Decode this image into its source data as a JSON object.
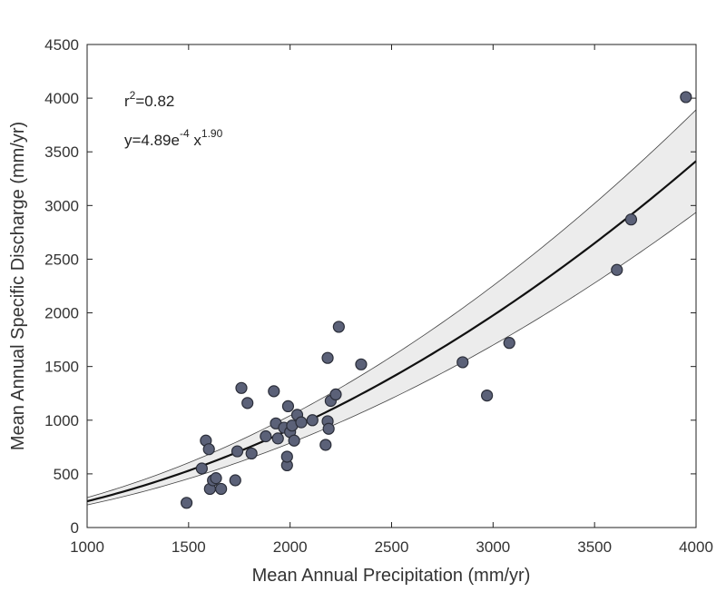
{
  "chart_data": {
    "type": "scatter",
    "xlabel": "Mean Annual Precipitation (mm/yr)",
    "ylabel": "Mean Annual Specific Discharge (mm/yr)",
    "xlim": [
      1000,
      4000
    ],
    "ylim": [
      0,
      4500
    ],
    "xticks": [
      "1000",
      "1500",
      "2000",
      "2500",
      "3000",
      "3500",
      "4000"
    ],
    "yticks": [
      "0",
      "500",
      "1000",
      "1500",
      "2000",
      "2500",
      "3000",
      "3500",
      "4000",
      "4500"
    ],
    "grid": false,
    "annotations": {
      "r2_prefix": "r",
      "r2_exp": "2",
      "r2_value": "=0.82",
      "eq_prefix": "y=4.89e",
      "eq_coef_exp": "-4",
      "eq_mid": " x",
      "eq_power_exp": "1.90"
    },
    "fit": {
      "coefficient": 0.000489,
      "exponent": 1.9,
      "lower_factor": 0.86,
      "upper_factor": 1.14
    },
    "colors": {
      "marker_fill": "#5b6178",
      "marker_edge": "#2a2d38",
      "fit_line": "#111111",
      "band_fill": "#ececec",
      "band_edge": "#444444"
    },
    "points": [
      {
        "x": 1490,
        "y": 230
      },
      {
        "x": 1565,
        "y": 550
      },
      {
        "x": 1585,
        "y": 810
      },
      {
        "x": 1600,
        "y": 730
      },
      {
        "x": 1605,
        "y": 360
      },
      {
        "x": 1620,
        "y": 440
      },
      {
        "x": 1635,
        "y": 460
      },
      {
        "x": 1660,
        "y": 360
      },
      {
        "x": 1730,
        "y": 440
      },
      {
        "x": 1740,
        "y": 710
      },
      {
        "x": 1760,
        "y": 1300
      },
      {
        "x": 1790,
        "y": 1160
      },
      {
        "x": 1810,
        "y": 690
      },
      {
        "x": 1880,
        "y": 850
      },
      {
        "x": 1920,
        "y": 1270
      },
      {
        "x": 1930,
        "y": 970
      },
      {
        "x": 1940,
        "y": 830
      },
      {
        "x": 1970,
        "y": 930
      },
      {
        "x": 1985,
        "y": 580
      },
      {
        "x": 1985,
        "y": 660
      },
      {
        "x": 1990,
        "y": 1130
      },
      {
        "x": 2000,
        "y": 890
      },
      {
        "x": 2010,
        "y": 950
      },
      {
        "x": 2020,
        "y": 810
      },
      {
        "x": 2035,
        "y": 1050
      },
      {
        "x": 2055,
        "y": 980
      },
      {
        "x": 2110,
        "y": 1000
      },
      {
        "x": 2175,
        "y": 770
      },
      {
        "x": 2185,
        "y": 1580
      },
      {
        "x": 2185,
        "y": 990
      },
      {
        "x": 2190,
        "y": 920
      },
      {
        "x": 2200,
        "y": 1180
      },
      {
        "x": 2225,
        "y": 1240
      },
      {
        "x": 2240,
        "y": 1870
      },
      {
        "x": 2350,
        "y": 1520
      },
      {
        "x": 2850,
        "y": 1540
      },
      {
        "x": 2970,
        "y": 1230
      },
      {
        "x": 3080,
        "y": 1720
      },
      {
        "x": 3610,
        "y": 2400
      },
      {
        "x": 3680,
        "y": 2870
      },
      {
        "x": 3950,
        "y": 4010
      }
    ]
  }
}
